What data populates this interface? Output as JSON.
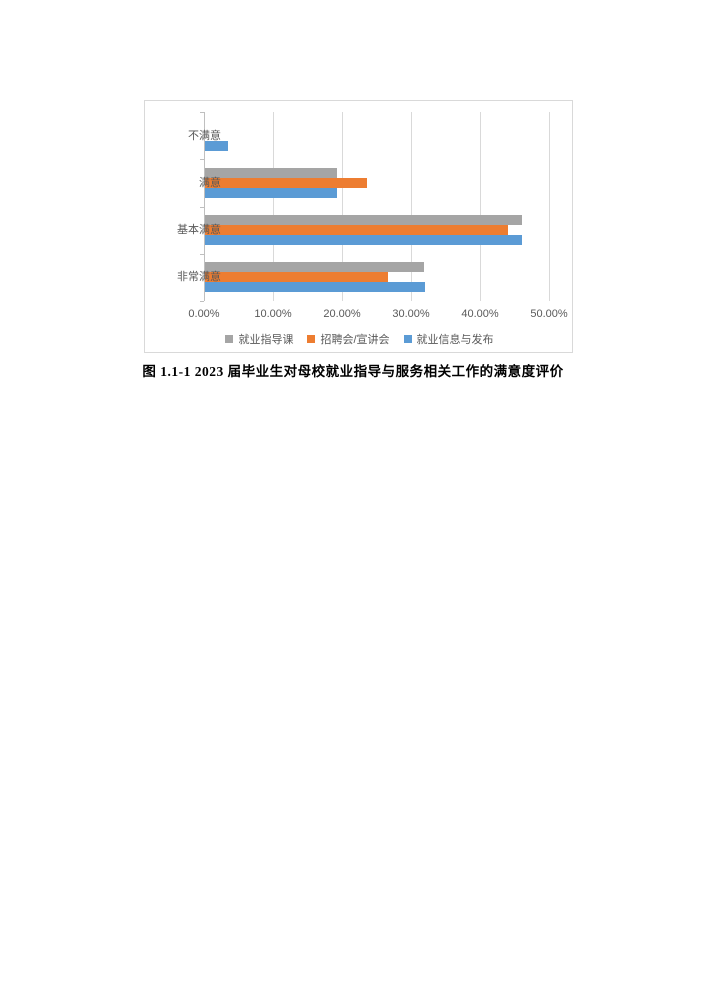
{
  "caption": "图 1.1-1  2023 届毕业生对母校就业指导与服务相关工作的满意度评价",
  "colors": {
    "series_gray": "#a5a5a5",
    "series_orange": "#ed7d31",
    "series_blue": "#5b9bd5",
    "gridline": "#d9d9d9",
    "axis_line": "#bfbfbf",
    "tick_text": "#595959",
    "chart_border": "#d9d9d9",
    "page_background": "#ffffff"
  },
  "chart_data": {
    "type": "bar",
    "orientation": "horizontal",
    "title": "",
    "xlabel": "",
    "ylabel": "",
    "categories": [
      "不满意",
      "满意",
      "基本满意",
      "非常满意"
    ],
    "series": [
      {
        "name": "就业指导课",
        "color": "#a5a5a5",
        "values": [
          0,
          19.1,
          45.9,
          31.8
        ]
      },
      {
        "name": "招聘会/宣讲会",
        "color": "#ed7d31",
        "values": [
          0,
          23.5,
          43.9,
          26.5
        ]
      },
      {
        "name": "就业信息与发布",
        "color": "#5b9bd5",
        "values": [
          3.3,
          19.1,
          45.9,
          31.9
        ]
      }
    ],
    "x_ticks": [
      "0.00%",
      "10.00%",
      "20.00%",
      "30.00%",
      "40.00%",
      "50.00%"
    ],
    "xlim": [
      0,
      50
    ],
    "unit": "%",
    "grid": true,
    "legend_position": "bottom"
  }
}
